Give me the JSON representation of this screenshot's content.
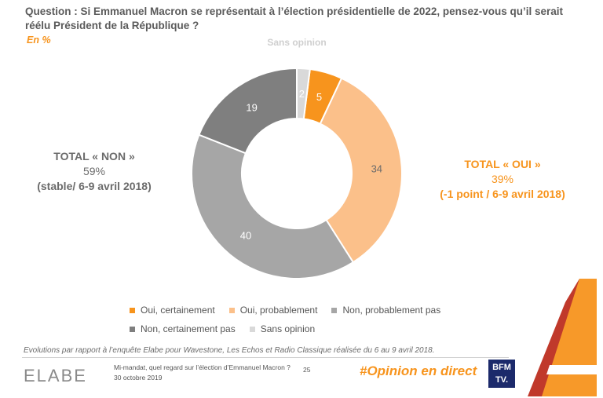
{
  "header": {
    "question": "Question : Si Emmanuel Macron se représentait à l’élection présidentielle de 2022, pensez-vous qu’il serait réélu Président de la République ?",
    "unit": "En %"
  },
  "totals": {
    "non": {
      "label": "TOTAL « NON »",
      "value": "59%",
      "note": "(stable/ 6-9 avril 2018)"
    },
    "oui": {
      "label": "TOTAL « OUI »",
      "value": "39%",
      "note": "(-1 point / 6-9 avril 2018)"
    }
  },
  "chart_data": {
    "type": "pie",
    "donut": true,
    "categories": [
      "Oui, certainement",
      "Oui, probablement",
      "Non, probablement pas",
      "Non, certainement pas",
      "Sans opinion"
    ],
    "values": [
      5,
      34,
      40,
      19,
      2
    ],
    "colors": [
      "#f7941d",
      "#fbc08a",
      "#a6a6a6",
      "#7f7f7f",
      "#d9d9d9"
    ],
    "label_colors": [
      "#ffffff",
      "#6b6b6b",
      "#ffffff",
      "#ffffff",
      "#ffffff"
    ],
    "outer_labels": [
      "",
      "",
      "",
      "",
      "Sans opinion"
    ],
    "legend": "bottom"
  },
  "footnote": "Evolutions par rapport à l’enquête Elabe pour Wavestone, Les Echos et Radio Classique réalisée du 6 au 9 avril 2018.",
  "footer": {
    "logo": "ELABE",
    "title": "Mi-mandat, quel regard sur l’élection d’Emmanuel Macron ?",
    "date": "30 octobre 2019",
    "page": "25",
    "hashtag": "#Opinion en direct",
    "bfm_line1": "BFM",
    "bfm_line2": "TV."
  }
}
